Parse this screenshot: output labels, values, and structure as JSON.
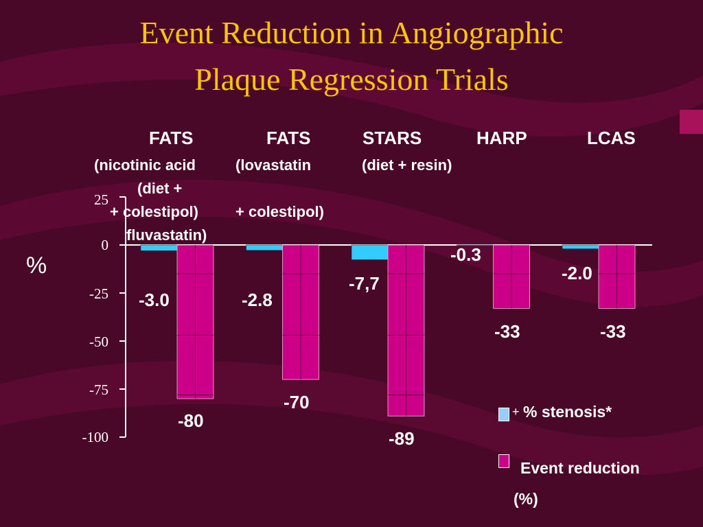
{
  "slide": {
    "title_line1": "Event Reduction in Angiographic",
    "title_line2": "Plaque Regression Trials",
    "y_unit": "%"
  },
  "trials": [
    {
      "name": "FATS",
      "desc1": "(nicotinic acid",
      "desc2": "(diet +",
      "desc3": "+ colestipol)",
      "desc4": "fluvastatin)"
    },
    {
      "name": "FATS",
      "desc1": "(lovastatin",
      "desc2": "+ colestipol)"
    },
    {
      "name": "STARS",
      "desc1": "(diet + resin)"
    },
    {
      "name": "HARP"
    },
    {
      "name": "LCAS"
    }
  ],
  "value_labels": {
    "stenosis": [
      "-3.0",
      "-2.8",
      "-7,7",
      "-0.3",
      "-2.0"
    ],
    "event": [
      "-80",
      "-70",
      "-89",
      "-33",
      "-33"
    ]
  },
  "legend": {
    "stenosis_prefix": "+",
    "stenosis": "% stenosis*",
    "event_line1": "Event reduction",
    "event_line2": "(%)"
  },
  "colors": {
    "background": "#4a0828",
    "title": "#f7c600",
    "stenosis": "#33ccff",
    "event": "#cc0088",
    "axis": "#ffffff"
  },
  "chart_data": {
    "type": "bar",
    "title": "Event Reduction in Angiographic Plaque Regression Trials",
    "ylabel": "%",
    "categories": [
      "FATS",
      "FATS",
      "STARS",
      "HARP",
      "LCAS"
    ],
    "series": [
      {
        "name": "% stenosis*",
        "values": [
          -3.0,
          -2.8,
          -7.7,
          -0.3,
          -2.0
        ]
      },
      {
        "name": "Event reduction (%)",
        "values": [
          -80,
          -70,
          -89,
          -33,
          -33
        ]
      }
    ],
    "ylim": [
      -100,
      25
    ],
    "yticks": [
      "25",
      "0",
      "-25",
      "-50",
      "-75",
      "-100"
    ],
    "ytick_values": [
      25,
      0,
      -25,
      -50,
      -75,
      -100
    ],
    "grid": false,
    "legend_position": "bottom-right"
  }
}
